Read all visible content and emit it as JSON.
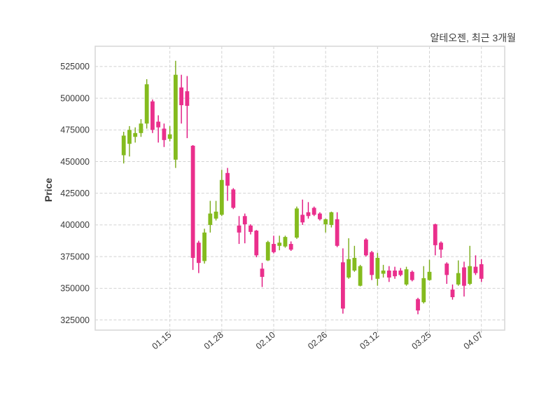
{
  "title": "알테오젠, 최근 3개월",
  "y_axis_label": "Price",
  "colors": {
    "up_body": "#84bb1e",
    "up_wick": "#78aa15",
    "down_body": "#ea2f8c",
    "down_wick": "#e0117e",
    "grid": "#d2d2d2",
    "spine": "#d9d9d9",
    "tick_mark": "#b5b5b5",
    "tick_text": "#3a3a3a",
    "title_text": "#3f3f3f",
    "background": "#ffffff"
  },
  "chart_data": {
    "type": "candlestick",
    "title": "알테오젠, 최근 3개월",
    "ylabel": "Price",
    "grid": true,
    "grid_style": "dashed",
    "legend_position": "none",
    "ylim": [
      317000,
      541000
    ],
    "y_ticks": [
      325000,
      350000,
      375000,
      400000,
      425000,
      450000,
      475000,
      500000,
      525000
    ],
    "x_tick_labels": [
      "01.15",
      "01.28",
      "02.10",
      "02.26",
      "03.12",
      "03.25",
      "04.07"
    ],
    "x_tick_candle_indices": [
      8,
      17,
      26,
      35,
      44,
      53,
      62
    ],
    "ohlc_order": [
      "open",
      "high",
      "low",
      "close"
    ],
    "candles": [
      [
        455000,
        473500,
        448500,
        470500
      ],
      [
        464000,
        478000,
        454000,
        475000
      ],
      [
        469500,
        477000,
        465000,
        472500
      ],
      [
        472500,
        483500,
        469500,
        480000
      ],
      [
        480000,
        515000,
        476000,
        511000
      ],
      [
        497500,
        499000,
        472500,
        475000
      ],
      [
        481500,
        486500,
        465000,
        477000
      ],
      [
        476000,
        480000,
        461500,
        467000
      ],
      [
        468000,
        478000,
        466000,
        471500
      ],
      [
        451500,
        529500,
        445000,
        518500
      ],
      [
        508500,
        518500,
        480000,
        494500
      ],
      [
        505500,
        517500,
        468500,
        494000
      ],
      [
        462500,
        463000,
        364500,
        374000
      ],
      [
        386000,
        387500,
        362000,
        370000
      ],
      [
        371500,
        397000,
        369500,
        394000
      ],
      [
        400000,
        419000,
        394000,
        409000
      ],
      [
        405000,
        419000,
        403500,
        410500
      ],
      [
        408000,
        443500,
        407000,
        435500
      ],
      [
        441000,
        445000,
        419000,
        431000
      ],
      [
        428000,
        429000,
        412500,
        413500
      ],
      [
        399500,
        407000,
        385000,
        394000
      ],
      [
        407000,
        409000,
        385500,
        400500
      ],
      [
        399500,
        400500,
        392500,
        394500
      ],
      [
        395500,
        396000,
        374500,
        376000
      ],
      [
        365500,
        370000,
        351000,
        359000
      ],
      [
        372000,
        387500,
        371500,
        386500
      ],
      [
        385000,
        391500,
        377500,
        378500
      ],
      [
        383500,
        391500,
        380000,
        386000
      ],
      [
        383000,
        391500,
        382000,
        390500
      ],
      [
        385000,
        387000,
        379500,
        380500
      ],
      [
        390000,
        414500,
        389000,
        413000
      ],
      [
        408000,
        420000,
        400000,
        402000
      ],
      [
        410000,
        418000,
        405000,
        407000
      ],
      [
        413500,
        414500,
        407000,
        408000
      ],
      [
        409000,
        410000,
        403500,
        404500
      ],
      [
        400500,
        405000,
        394000,
        404500
      ],
      [
        400000,
        410500,
        398000,
        410000
      ],
      [
        404500,
        410000,
        382500,
        383500
      ],
      [
        370500,
        381500,
        330000,
        334000
      ],
      [
        358500,
        389500,
        357500,
        373000
      ],
      [
        364000,
        383500,
        363000,
        374000
      ],
      [
        352000,
        368500,
        351500,
        367500
      ],
      [
        388500,
        389500,
        375000,
        376000
      ],
      [
        378500,
        379500,
        356500,
        360500
      ],
      [
        357500,
        378000,
        352000,
        374000
      ],
      [
        361500,
        368500,
        358500,
        364000
      ],
      [
        364000,
        367500,
        355000,
        358500
      ],
      [
        364000,
        367000,
        357500,
        359500
      ],
      [
        364000,
        366000,
        359500,
        360500
      ],
      [
        353000,
        367000,
        352000,
        365000
      ],
      [
        363000,
        364000,
        355500,
        356500
      ],
      [
        341500,
        342500,
        329500,
        332500
      ],
      [
        339000,
        367500,
        338000,
        358000
      ],
      [
        356500,
        372500,
        356000,
        363000
      ],
      [
        400500,
        401000,
        376000,
        384000
      ],
      [
        386000,
        387000,
        374000,
        380500
      ],
      [
        369500,
        370500,
        353500,
        360500
      ],
      [
        349000,
        353000,
        341000,
        343000
      ],
      [
        353000,
        372000,
        352000,
        362000
      ],
      [
        366500,
        371000,
        343500,
        352000
      ],
      [
        353500,
        383500,
        352500,
        367500
      ],
      [
        367000,
        376000,
        360500,
        362000
      ],
      [
        369000,
        373000,
        355000,
        357500
      ]
    ]
  }
}
